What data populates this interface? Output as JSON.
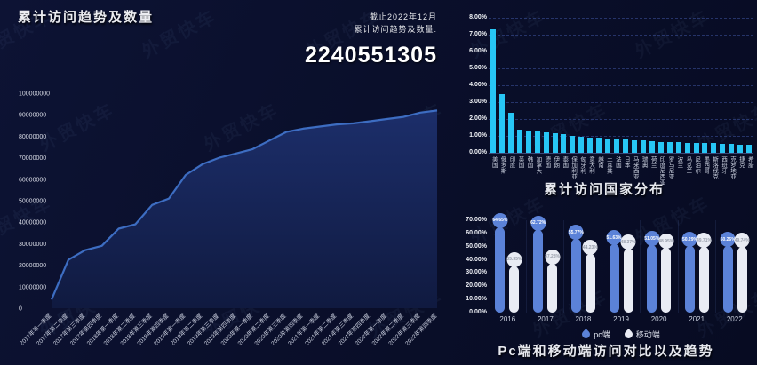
{
  "watermark": {
    "text": "外贸快车"
  },
  "header": {
    "title": "累计访问趋势及数量",
    "asof_line1": "截止2022年12月",
    "asof_line2": "累计访问趋势及数量:",
    "total_visits": "2240551305"
  },
  "chart_data": [
    {
      "id": "visit_trend",
      "type": "area",
      "title": "累计访问趋势及数量",
      "x": [
        "2017年第一季度",
        "2017年第二季度",
        "2017年第三季度",
        "2017年第四季度",
        "2018年第一季度",
        "2018年第二季度",
        "2018年第三季度",
        "2018年第四季度",
        "2019年第一季度",
        "2019年第二季度",
        "2019年第三季度",
        "2019年第四季度",
        "2020年第一季度",
        "2020年第二季度",
        "2020年第三季度",
        "2020年第四季度",
        "2021年第一季度",
        "2021年第二季度",
        "2021年第三季度",
        "2021年第四季度",
        "2022年第一季度",
        "2022年第二季度",
        "2022年第三季度",
        "2022年第四季度"
      ],
      "values": [
        4000000,
        22500000,
        27000000,
        29000000,
        37000000,
        39000000,
        48000000,
        51000000,
        62000000,
        67000000,
        70000000,
        72000000,
        74000000,
        78000000,
        82000000,
        83500000,
        84500000,
        85500000,
        86000000,
        87000000,
        88000000,
        89000000,
        91000000,
        92000000
      ],
      "ylim": [
        0,
        100000000
      ],
      "ytick_interval": 10000000,
      "grid": false,
      "line_color": "#3d6dc2",
      "area_color_top": "#1c2e6a",
      "area_color_bottom": "#101a40"
    },
    {
      "id": "country_distribution",
      "type": "bar",
      "title": "累计访问国家分布",
      "categories": [
        "美国",
        "俄罗斯",
        "印度",
        "英国",
        "韩国",
        "加拿大",
        "德国",
        "伊朗",
        "泰国",
        "保加利亚",
        "匈牙利",
        "意大利",
        "越南",
        "土耳其",
        "法国",
        "日本",
        "马来西亚",
        "瑞典",
        "荷兰",
        "印度尼西亚",
        "罗马尼亚",
        "波兰",
        "乌克兰",
        "尼泊尔",
        "墨西哥",
        "斯洛伐克",
        "西班牙",
        "克罗地亚",
        "捷克",
        "希腊"
      ],
      "values": [
        7.3,
        3.5,
        2.35,
        1.35,
        1.3,
        1.28,
        1.2,
        1.15,
        1.12,
        1.0,
        0.95,
        0.92,
        0.88,
        0.85,
        0.82,
        0.78,
        0.75,
        0.72,
        0.68,
        0.66,
        0.63,
        0.62,
        0.6,
        0.58,
        0.57,
        0.56,
        0.55,
        0.52,
        0.48,
        0.5
      ],
      "ylim": [
        0,
        8
      ],
      "ytick_labels": [
        "0.00%",
        "1.00%",
        "2.00%",
        "3.00%",
        "4.00%",
        "5.00%",
        "6.00%",
        "7.00%",
        "8.00%"
      ],
      "grid": true,
      "bar_color": "#27c6f5"
    },
    {
      "id": "pc_mobile_trend",
      "type": "bar",
      "title": "Pc端和移动端访问对比以及趋势",
      "categories": [
        "2016",
        "2017",
        "2018",
        "2019",
        "2020",
        "2021",
        "2022"
      ],
      "series": [
        {
          "name": "pc端",
          "color": "#5b82d8",
          "label_text_color": "#ffffff",
          "values": [
            64.65,
            62.72,
            55.77,
            51.63,
            51.05,
            50.29,
            50.26
          ]
        },
        {
          "name": "移动端",
          "color": "#e9ecf4",
          "label_text_color": "#9aa0ad",
          "values": [
            35.35,
            37.28,
            44.23,
            48.37,
            48.95,
            49.71,
            49.74
          ]
        }
      ],
      "ylim": [
        0,
        70
      ],
      "ytick_labels": [
        "0.00%",
        "10.00%",
        "20.00%",
        "30.00%",
        "40.00%",
        "50.00%",
        "60.00%",
        "70.00%"
      ],
      "grid": false,
      "legend_position": "bottom"
    }
  ]
}
